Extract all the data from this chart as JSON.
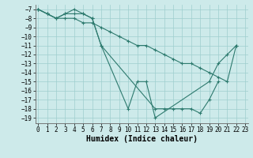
{
  "series": [
    {
      "x": [
        0,
        1,
        2,
        3,
        4,
        5,
        6,
        7,
        8,
        9,
        10,
        11,
        12,
        13,
        14,
        15,
        16,
        17,
        18,
        19,
        20,
        21,
        22
      ],
      "y": [
        -7,
        -7.5,
        -8,
        -8,
        -8,
        -8.5,
        -8.5,
        -9,
        -9.5,
        -10,
        -10.5,
        -11,
        -11,
        -11.5,
        -12,
        -12.5,
        -13,
        -13,
        -13.5,
        -14,
        -14.5,
        -15,
        -11
      ]
    },
    {
      "x": [
        0,
        1,
        2,
        3,
        4,
        5,
        6,
        7,
        10,
        11,
        12,
        13,
        19,
        20,
        21,
        22
      ],
      "y": [
        -7,
        -7.5,
        -8,
        -7.5,
        -7.5,
        -7.5,
        -8,
        -11,
        -18,
        -15,
        -15,
        -19,
        -15,
        -13,
        -12,
        -11
      ]
    },
    {
      "x": [
        0,
        1,
        2,
        3,
        4,
        5,
        6,
        7,
        13,
        14,
        15,
        16,
        17,
        18,
        19,
        20
      ],
      "y": [
        -7,
        -7.5,
        -8,
        -7.5,
        -7,
        -7.5,
        -8,
        -11,
        -18,
        -18,
        -18,
        -18,
        -18,
        -18.5,
        -17,
        -15
      ]
    }
  ],
  "line_color": "#2d7a6e",
  "marker": "+",
  "marker_size": 3.5,
  "marker_lw": 0.8,
  "xlim": [
    -0.3,
    23.3
  ],
  "ylim": [
    -19.6,
    -6.5
  ],
  "xticks": [
    0,
    1,
    2,
    3,
    4,
    5,
    6,
    7,
    8,
    9,
    10,
    11,
    12,
    13,
    14,
    15,
    16,
    17,
    18,
    19,
    20,
    21,
    22,
    23
  ],
  "yticks": [
    -7,
    -8,
    -9,
    -10,
    -11,
    -12,
    -13,
    -14,
    -15,
    -16,
    -17,
    -18,
    -19
  ],
  "xlabel": "Humidex (Indice chaleur)",
  "background_color": "#cdeaea",
  "grid_color": "#9ecece",
  "tick_label_fontsize": 5.5,
  "xlabel_fontsize": 7,
  "line_width": 0.8
}
